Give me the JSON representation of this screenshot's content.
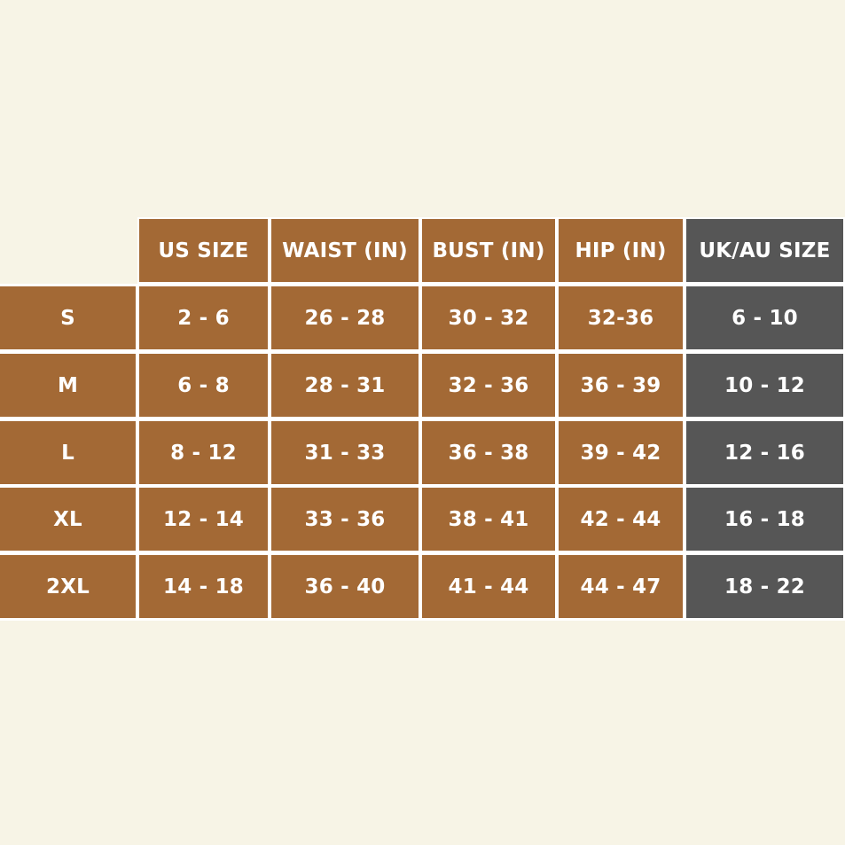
{
  "colors": {
    "background": "#f7f4e6",
    "cell": "#a36935",
    "highlight_column": "#565656",
    "text": "#ffffff",
    "grid": "#ffffff"
  },
  "table": {
    "headers": [
      "US SIZE",
      "WAIST (IN)",
      "BUST (IN)",
      "HIP (IN)",
      "UK/AU SIZE"
    ],
    "rows": [
      {
        "size": "S",
        "cells": [
          "2 - 6",
          "26 - 28",
          "30 - 32",
          "32-36",
          "6 - 10"
        ]
      },
      {
        "size": "M",
        "cells": [
          "6 - 8",
          "28 - 31",
          "32 - 36",
          "36 - 39",
          "10 - 12"
        ]
      },
      {
        "size": "L",
        "cells": [
          "8 - 12",
          "31 - 33",
          "36 - 38",
          "39 - 42",
          "12 - 16"
        ]
      },
      {
        "size": "XL",
        "cells": [
          "12 - 14",
          "33 - 36",
          "38 - 41",
          "42 - 44",
          "16 - 18"
        ]
      },
      {
        "size": "2XL",
        "cells": [
          "14 - 18",
          "36 - 40",
          "41 - 44",
          "44 - 47",
          "18 - 22"
        ]
      }
    ]
  }
}
